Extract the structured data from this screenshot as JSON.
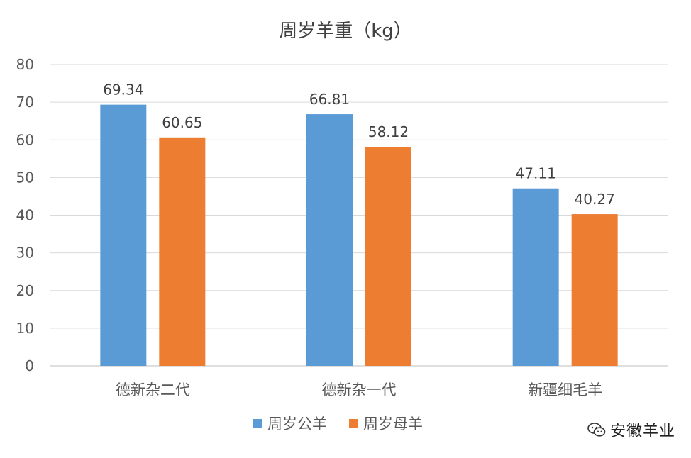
{
  "chart_data": {
    "type": "bar",
    "title": "周岁羊重（kg）",
    "categories": [
      "德新杂二代",
      "德新杂一代",
      "新疆细毛羊"
    ],
    "series": [
      {
        "name": "周岁公羊",
        "color": "#5B9BD5",
        "values": [
          69.34,
          66.81,
          47.11
        ]
      },
      {
        "name": "周岁母羊",
        "color": "#ED7D31",
        "values": [
          60.65,
          58.12,
          40.27
        ]
      }
    ],
    "value_labels": [
      [
        "69.34",
        "66.81",
        "47.11"
      ],
      [
        "60.65",
        "58.12",
        "40.27"
      ]
    ],
    "ylim": [
      0,
      80
    ],
    "yticks": [
      0,
      10,
      20,
      30,
      40,
      50,
      60,
      70,
      80
    ],
    "grid": true,
    "legend_position": "bottom-center"
  },
  "watermark": {
    "text": "安徽羊业",
    "icon": "wechat-icon"
  }
}
